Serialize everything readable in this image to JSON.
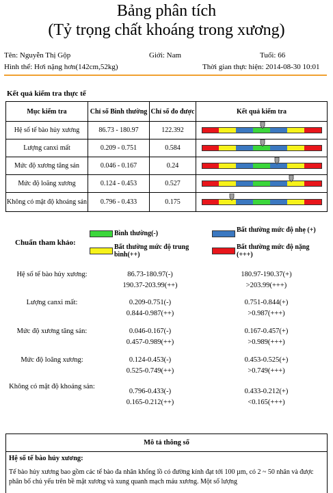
{
  "header": {
    "title": "Bảng phân tích",
    "subtitle": "(Tỷ trọng chất khoáng trong xương)"
  },
  "patient": {
    "name": "Tên: Nguyễn Thị Gộp",
    "gender": "Giới: Nam",
    "age": "Tuổi: 66",
    "body": "Hình thể: Hơi nặng hơn(142cm,52kg)",
    "time": "Thời gian thực hiện: 2014-08-30 10:01"
  },
  "results": {
    "section_title": "Kết quả kiểm tra thực tế",
    "columns": [
      "Mục kiểm tra",
      "Chỉ số Bình thường",
      "Chỉ số đo được",
      "Kết quả kiểm tra"
    ],
    "rows": [
      {
        "item": "Hệ số tế bào hủy xương",
        "normal": "86.73 - 180.97",
        "measured": "122.392",
        "level": 0.51
      },
      {
        "item": "Lượng canxi mất",
        "normal": "0.209 - 0.751",
        "measured": "0.584",
        "level": 0.51
      },
      {
        "item": "Mức độ xương tăng sản",
        "normal": "0.046 - 0.167",
        "measured": "0.24",
        "level": 0.63
      },
      {
        "item": "Mức độ loãng xương",
        "normal": "0.124 - 0.453",
        "measured": "0.527",
        "level": 0.75
      },
      {
        "item": "Không có mật độ khoáng sản",
        "normal": "0.796 - 0.433",
        "measured": "0.175",
        "level": 0.25
      }
    ],
    "bar_colors": [
      "#e8161b",
      "#f6f21a",
      "#3b78c0",
      "#3bd63b",
      "#3b78c0",
      "#f6f21a",
      "#e8161b"
    ]
  },
  "legend": {
    "title": "Chuẩn tham khảo:",
    "items": [
      {
        "color": "#3bd63b",
        "label": "Bình thường(-)"
      },
      {
        "color": "#3b78c0",
        "label": "Bất thường mức độ nhẹ (+)"
      },
      {
        "color": "#f6f21a",
        "label": "Bất thường mức độ trung bình(++)"
      },
      {
        "color": "#e8161b",
        "label": "Bất thường mức độ nặng (+++)"
      }
    ]
  },
  "reference": [
    {
      "label": "Hệ số tế bào hủy xương:",
      "a1": "86.73-180.97(-)",
      "b1": "180.97-190.37(+)",
      "a2": "190.37-203.99(++)",
      "b2": ">203.99(+++)"
    },
    {
      "label": "Lượng canxi mất:",
      "a1": "0.209-0.751(-)",
      "b1": "0.751-0.844(+)",
      "a2": "0.844-0.987(++)",
      "b2": ">0.987(+++)"
    },
    {
      "label": "Mức độ xương tăng sản:",
      "a1": "0.046-0.167(-)",
      "b1": "0.167-0.457(+)",
      "a2": "0.457-0.989(++)",
      "b2": ">0.989(+++)"
    },
    {
      "label": "Mức độ loãng xương:",
      "a1": "0.124-0.453(-)",
      "b1": "0.453-0.525(+)",
      "a2": "0.525-0.749(++)",
      "b2": ">0.749(+++)"
    },
    {
      "label": "Không có mật độ khoáng sản:",
      "a1": "0.796-0.433(-)",
      "b1": "0.433-0.212(+)",
      "a2": "0.165-0.212(++)",
      "b2": "<0.165(+++)"
    }
  ],
  "description": {
    "header": "Mô tả thông số",
    "subheader": "Hệ số tế bào hủy xương:",
    "text": "Tế bào hủy xương bao gồm các tế bào đa nhân khổng lồ có đường kính đạt tới 100 µm, có 2 ~ 50 nhân và được phân bố chủ yếu trên bề mặt xương và xung quanh mạch máu xương. Một số lượng"
  }
}
